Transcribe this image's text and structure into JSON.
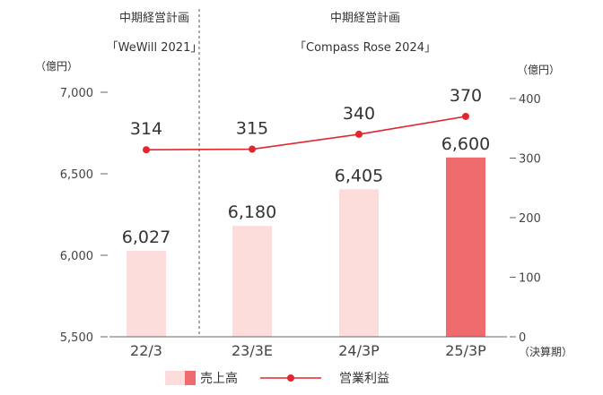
{
  "chart_data": {
    "type": "bar+line",
    "plans": [
      {
        "name": "中期経営計画",
        "subtitle": "「WeWill 2021」"
      },
      {
        "name": "中期経営計画",
        "subtitle": "「Compass Rose 2024」"
      }
    ],
    "categories": [
      "22/3",
      "23/3E",
      "24/3P",
      "25/3P"
    ],
    "x_unit": "（決算期）",
    "left_axis": {
      "unit": "（億円）",
      "ylim": [
        5500,
        7000
      ],
      "ticks": [
        "5,500",
        "6,000",
        "6,500",
        "7,000"
      ]
    },
    "right_axis": {
      "unit": "（億円）",
      "ylim": [
        0,
        400
      ],
      "ticks": [
        "0",
        "100",
        "200",
        "300",
        "400"
      ]
    },
    "series": [
      {
        "name": "売上高",
        "kind": "bar",
        "axis": "left",
        "values": [
          6027,
          6180,
          6405,
          6600
        ],
        "labels": [
          "6,027",
          "6,180",
          "6,405",
          "6,600"
        ],
        "colors": [
          "#fddcdc",
          "#fddcdc",
          "#fddcdc",
          "#f06b6e"
        ]
      },
      {
        "name": "営業利益",
        "kind": "line",
        "axis": "right",
        "values": [
          314,
          315,
          340,
          370
        ],
        "labels": [
          "314",
          "315",
          "340",
          "370"
        ],
        "color": "#e1262d"
      }
    ],
    "legend": {
      "position": "bottom"
    },
    "grid": false
  }
}
